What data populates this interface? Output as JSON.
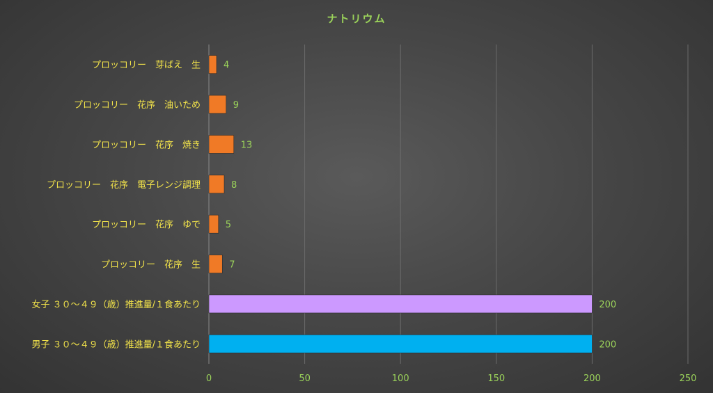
{
  "chart_data": {
    "type": "bar",
    "orientation": "horizontal",
    "title": "ナトリウム",
    "categories": [
      "プロッコリー　芽ばえ　生",
      "プロッコリー　花序　油いため",
      "プロッコリー　花序　焼き",
      "プロッコリー　花序　電子レンジ調理",
      "プロッコリー　花序　ゆで",
      "プロッコリー　花序　生",
      "女子 ３０～４９（歳）推進量/１食あたり",
      "男子 ３０～４９（歳）推進量/１食あたり"
    ],
    "values": [
      4,
      9,
      13,
      8,
      5,
      7,
      200,
      200
    ],
    "bar_colors": [
      "#f07a26",
      "#f07a26",
      "#f07a26",
      "#f07a26",
      "#f07a26",
      "#f07a26",
      "#cc99ff",
      "#00b0f0"
    ],
    "xlim": [
      0,
      250
    ],
    "xticks": [
      0,
      50,
      100,
      150,
      200,
      250
    ],
    "grid": true,
    "legend": "none"
  }
}
